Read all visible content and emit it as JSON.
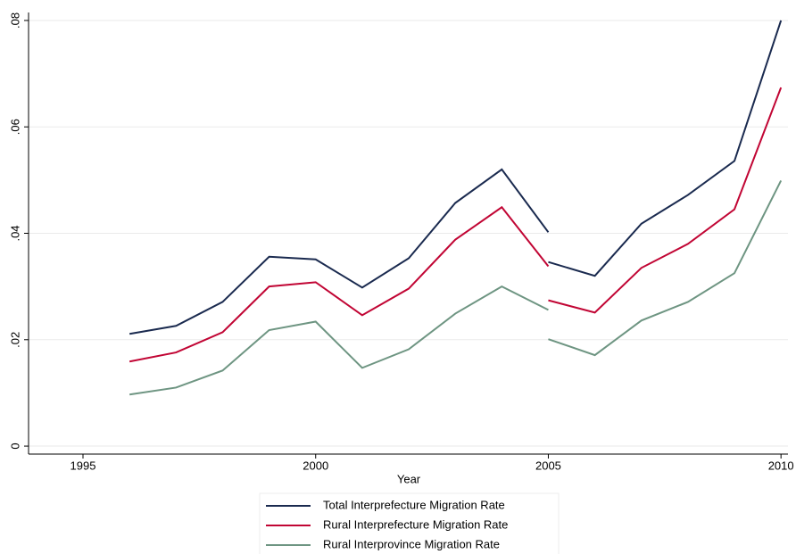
{
  "chart_data": {
    "type": "line",
    "x_label": "Year",
    "x": [
      1996,
      1997,
      1998,
      1999,
      2000,
      2001,
      2002,
      2003,
      2004,
      2005,
      2005,
      2005,
      2006,
      2007,
      2008,
      2009,
      2010
    ],
    "series": [
      {
        "name": "Total Interprefecture Migration Rate",
        "color": "#1a2a4f",
        "values": [
          0.0211,
          0.0226,
          0.0271,
          0.0356,
          0.0351,
          0.0298,
          0.0353,
          0.0457,
          0.052,
          0.0402,
          null,
          0.0346,
          0.032,
          0.0418,
          0.0472,
          0.0536,
          0.08
        ]
      },
      {
        "name": "Rural Interprefecture Migration Rate",
        "color": "#c10534",
        "values": [
          0.0159,
          0.0176,
          0.0214,
          0.03,
          0.0308,
          0.0246,
          0.0296,
          0.0388,
          0.0449,
          0.0338,
          null,
          0.0274,
          0.0251,
          0.0335,
          0.038,
          0.0445,
          0.0674
        ]
      },
      {
        "name": "Rural Interprovince Migration Rate",
        "color": "#6e9582",
        "values": [
          0.0097,
          0.011,
          0.0142,
          0.0218,
          0.0234,
          0.0147,
          0.0182,
          0.0249,
          0.03,
          0.0256,
          null,
          0.0201,
          0.0171,
          0.0236,
          0.0271,
          0.0325,
          0.0499
        ]
      }
    ],
    "xlim": [
      1993.83,
      2010.15
    ],
    "xticks": [
      1995,
      2000,
      2005,
      2010
    ],
    "ylim": [
      -0.0015,
      0.0815
    ],
    "yticks": [
      0,
      {
        "value": 0.02,
        "label": ".02"
      },
      {
        "value": 0.04,
        "label": ".04"
      },
      {
        "value": 0.06,
        "label": ".06"
      },
      {
        "value": 0.08,
        "label": ".08"
      }
    ],
    "grid": true,
    "legend": "bottom"
  }
}
